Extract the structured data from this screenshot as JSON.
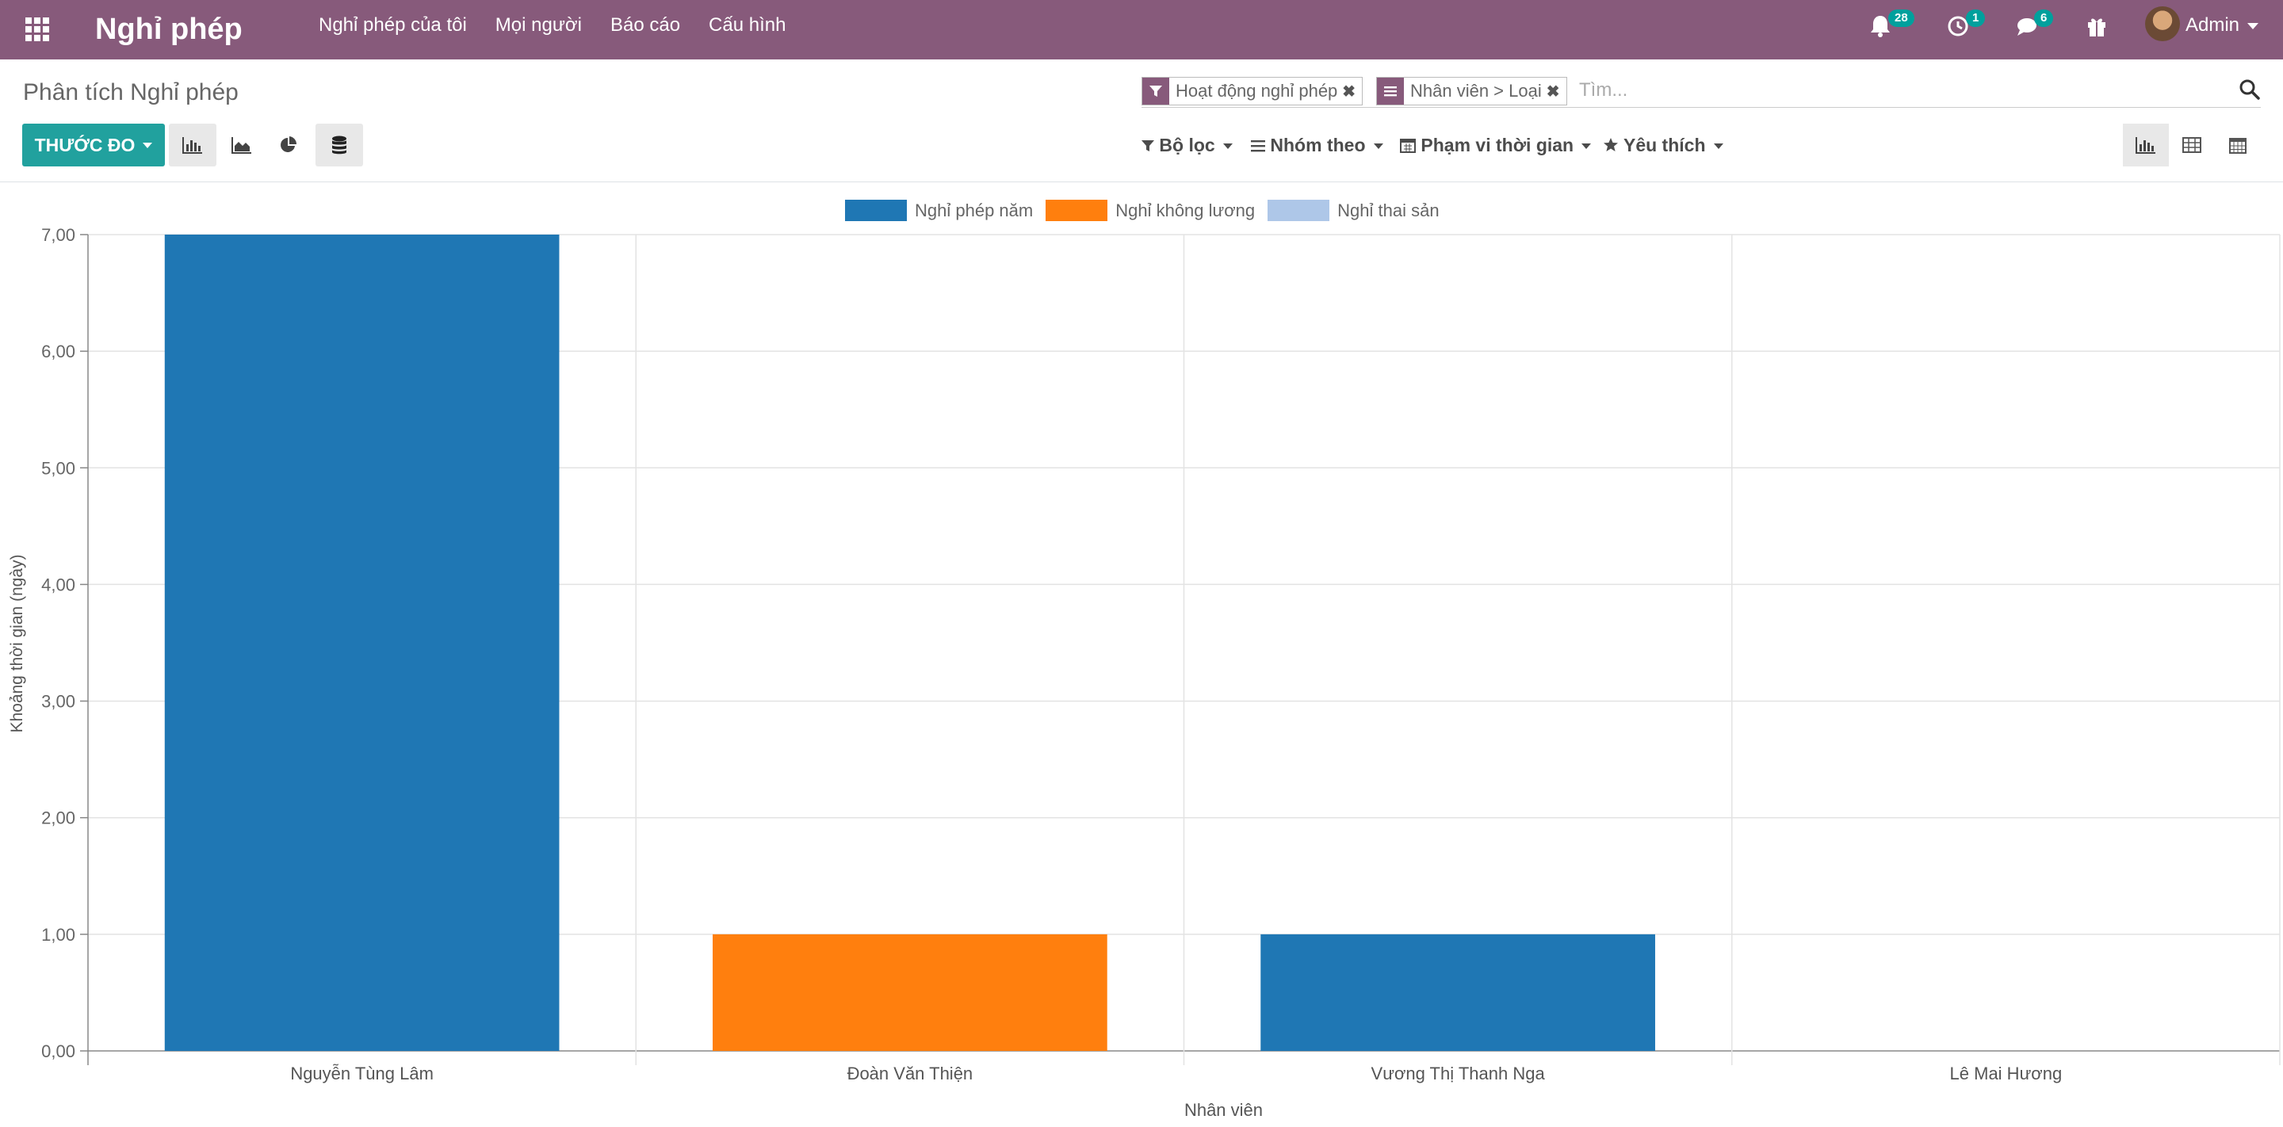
{
  "navbar": {
    "brand": "Nghỉ phép",
    "menu": [
      "Nghỉ phép của tôi",
      "Mọi người",
      "Báo cáo",
      "Cấu hình"
    ],
    "notifications": {
      "icon": "bell-icon",
      "count": "28"
    },
    "activities": {
      "icon": "clock-icon",
      "count": "1"
    },
    "messages": {
      "icon": "chat-icon",
      "count": "6"
    },
    "gift": {
      "icon": "gift-icon"
    },
    "user": "Admin"
  },
  "control_panel": {
    "breadcrumb": "Phân tích Nghỉ phép",
    "facets": [
      {
        "icon": "filter-icon",
        "label": "Hoạt động nghỉ phép"
      },
      {
        "icon": "group-by-icon",
        "label": "Nhân viên > Loại"
      }
    ],
    "search_placeholder": "Tìm...",
    "measure_label": "THƯỚC ĐO",
    "filter_menus": [
      "Bộ lọc",
      "Nhóm theo",
      "Phạm vi thời gian",
      "Yêu thích"
    ]
  },
  "colors": {
    "navbar": "#875a7b",
    "primary_button": "#21a19e",
    "badge": "#00a09d"
  },
  "chart_data": {
    "type": "bar",
    "stacked": true,
    "categories": [
      "Nguyễn Tùng Lâm",
      "Đoàn Văn Thiện",
      "Vương Thị Thanh Nga",
      "Lê Mai Hương"
    ],
    "series": [
      {
        "name": "Nghỉ phép năm",
        "color": "#1f77b4",
        "values": [
          7,
          0,
          1,
          0
        ]
      },
      {
        "name": "Nghỉ không lương",
        "color": "#ff7f0e",
        "values": [
          0,
          1,
          0,
          0
        ]
      },
      {
        "name": "Nghỉ thai sản",
        "color": "#aec7e8",
        "values": [
          0,
          0,
          0,
          0
        ]
      }
    ],
    "xlabel": "Nhân viên",
    "ylabel": "Khoảng thời gian (ngày)",
    "ylim": [
      0,
      7
    ],
    "yticks": [
      "0,00",
      "1,00",
      "2,00",
      "3,00",
      "4,00",
      "5,00",
      "6,00",
      "7,00"
    ],
    "grid": true,
    "legend": "top-center"
  }
}
